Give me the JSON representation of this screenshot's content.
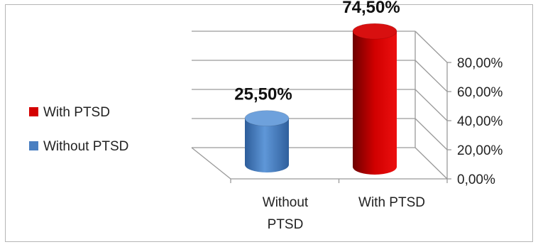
{
  "chart_data": {
    "type": "bar",
    "style": "3d-cylinder",
    "categories": [
      "Without PTSD",
      "With PTSD"
    ],
    "category_label_lines": [
      [
        "Without",
        "PTSD"
      ],
      [
        "With PTSD"
      ]
    ],
    "values": [
      25.5,
      74.5
    ],
    "value_labels": [
      "25,50%",
      "74,50%"
    ],
    "colors": [
      "#4a7fc1",
      "#d40000"
    ],
    "y_ticks": [
      "0,00%",
      "20,00%",
      "40,00%",
      "60,00%",
      "80,00%"
    ],
    "ylim": [
      0,
      80
    ],
    "grid": true,
    "legend": {
      "position": "left",
      "entries": [
        {
          "label": "With PTSD",
          "color": "#d40000"
        },
        {
          "label": "Without PTSD",
          "color": "#4a7fc1"
        }
      ]
    }
  }
}
